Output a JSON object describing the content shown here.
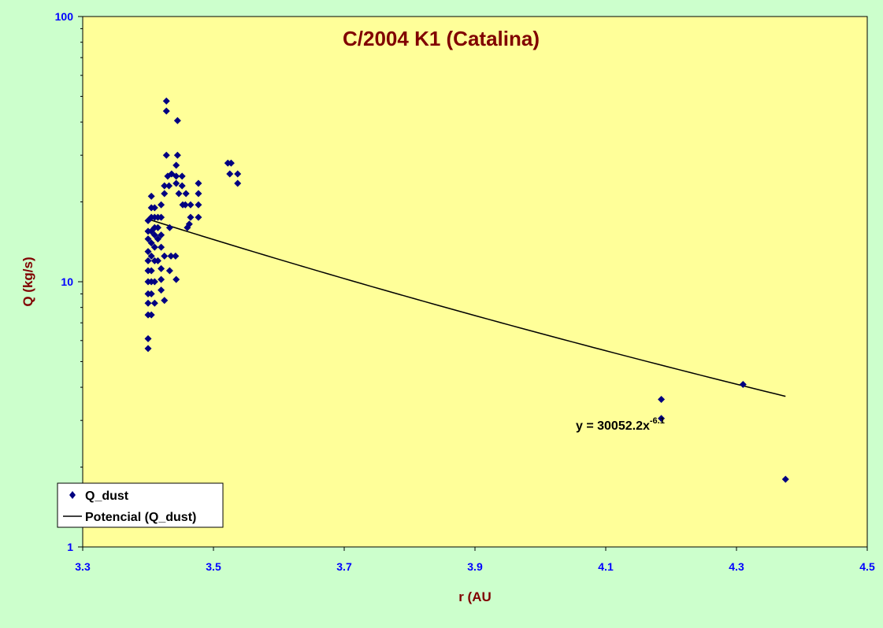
{
  "chart_data": {
    "type": "scatter",
    "title": "C/2004 K1 (Catalina)",
    "xlabel": "r (AU",
    "ylabel": "Q (kg/s)",
    "x_scale": "linear",
    "y_scale": "log",
    "xlim": [
      3.3,
      4.5
    ],
    "ylim": [
      1,
      100
    ],
    "x_ticks": [
      "3.3",
      "3.5",
      "3.7",
      "3.9",
      "4.1",
      "4.3",
      "4.5"
    ],
    "y_ticks": [
      "1",
      "10",
      "100"
    ],
    "grid": false,
    "legend_position": "bottom-left",
    "colors": {
      "figure_background": "#ccffcc",
      "plot_background": "#ffff99",
      "title": "#800000",
      "axis_label": "#800000",
      "tick_label": "#0000ff",
      "marker": "#000080",
      "trendline": "#000000"
    },
    "series": [
      {
        "name": "Q_dust",
        "marker": "diamond",
        "points": [
          [
            3.4,
            5.6
          ],
          [
            3.4,
            6.1
          ],
          [
            3.4,
            7.5
          ],
          [
            3.4,
            8.3
          ],
          [
            3.4,
            9.0
          ],
          [
            3.4,
            10.0
          ],
          [
            3.4,
            11.0
          ],
          [
            3.4,
            12.0
          ],
          [
            3.4,
            13.0
          ],
          [
            3.4,
            14.5
          ],
          [
            3.4,
            15.5
          ],
          [
            3.4,
            17.0
          ],
          [
            3.405,
            7.5
          ],
          [
            3.405,
            9.0
          ],
          [
            3.405,
            10.0
          ],
          [
            3.405,
            11.0
          ],
          [
            3.405,
            12.5
          ],
          [
            3.405,
            14.0
          ],
          [
            3.405,
            15.5
          ],
          [
            3.405,
            17.5
          ],
          [
            3.405,
            19.0
          ],
          [
            3.405,
            21.0
          ],
          [
            3.41,
            8.3
          ],
          [
            3.41,
            10.0
          ],
          [
            3.41,
            12.0
          ],
          [
            3.41,
            13.5
          ],
          [
            3.41,
            15.0
          ],
          [
            3.41,
            16.0
          ],
          [
            3.41,
            17.5
          ],
          [
            3.41,
            19.0
          ],
          [
            3.415,
            12.0
          ],
          [
            3.415,
            14.5
          ],
          [
            3.415,
            16.0
          ],
          [
            3.415,
            17.5
          ],
          [
            3.42,
            9.3
          ],
          [
            3.42,
            10.2
          ],
          [
            3.42,
            11.2
          ],
          [
            3.42,
            13.5
          ],
          [
            3.42,
            15.0
          ],
          [
            3.42,
            17.5
          ],
          [
            3.42,
            19.5
          ],
          [
            3.425,
            8.5
          ],
          [
            3.425,
            12.5
          ],
          [
            3.425,
            21.5
          ],
          [
            3.425,
            23.0
          ],
          [
            3.428,
            44.0
          ],
          [
            3.428,
            48.0
          ],
          [
            3.428,
            30.0
          ],
          [
            3.43,
            25.0
          ],
          [
            3.432,
            23.0
          ],
          [
            3.433,
            16.0
          ],
          [
            3.433,
            11.0
          ],
          [
            3.435,
            12.5
          ],
          [
            3.436,
            25.5
          ],
          [
            3.442,
            12.5
          ],
          [
            3.443,
            10.2
          ],
          [
            3.443,
            23.5
          ],
          [
            3.443,
            25.0
          ],
          [
            3.443,
            27.5
          ],
          [
            3.445,
            30.0
          ],
          [
            3.445,
            40.5
          ],
          [
            3.447,
            21.5
          ],
          [
            3.452,
            25.0
          ],
          [
            3.452,
            23.0
          ],
          [
            3.453,
            19.5
          ],
          [
            3.457,
            19.5
          ],
          [
            3.458,
            21.5
          ],
          [
            3.46,
            16.0
          ],
          [
            3.463,
            16.5
          ],
          [
            3.465,
            17.5
          ],
          [
            3.465,
            19.5
          ],
          [
            3.477,
            17.5
          ],
          [
            3.477,
            19.5
          ],
          [
            3.477,
            21.5
          ],
          [
            3.477,
            23.5
          ],
          [
            3.522,
            28.0
          ],
          [
            3.525,
            25.5
          ],
          [
            3.527,
            28.0
          ],
          [
            3.537,
            25.5
          ],
          [
            3.537,
            23.5
          ],
          [
            4.185,
            3.6
          ],
          [
            4.185,
            3.05
          ],
          [
            4.31,
            4.1
          ],
          [
            4.375,
            1.8
          ]
        ]
      }
    ],
    "trendline": {
      "name": "Potencial (Q_dust)",
      "type": "power",
      "coefficient": 30052.2,
      "exponent": -6.1,
      "x_range": [
        3.4,
        4.375
      ],
      "equation_label": {
        "prefix": "y = 30052.2x",
        "exponent": "-6.1"
      }
    },
    "legend": [
      {
        "label": "Q_dust",
        "kind": "marker"
      },
      {
        "label": "Potencial (Q_dust)",
        "kind": "line"
      }
    ]
  }
}
